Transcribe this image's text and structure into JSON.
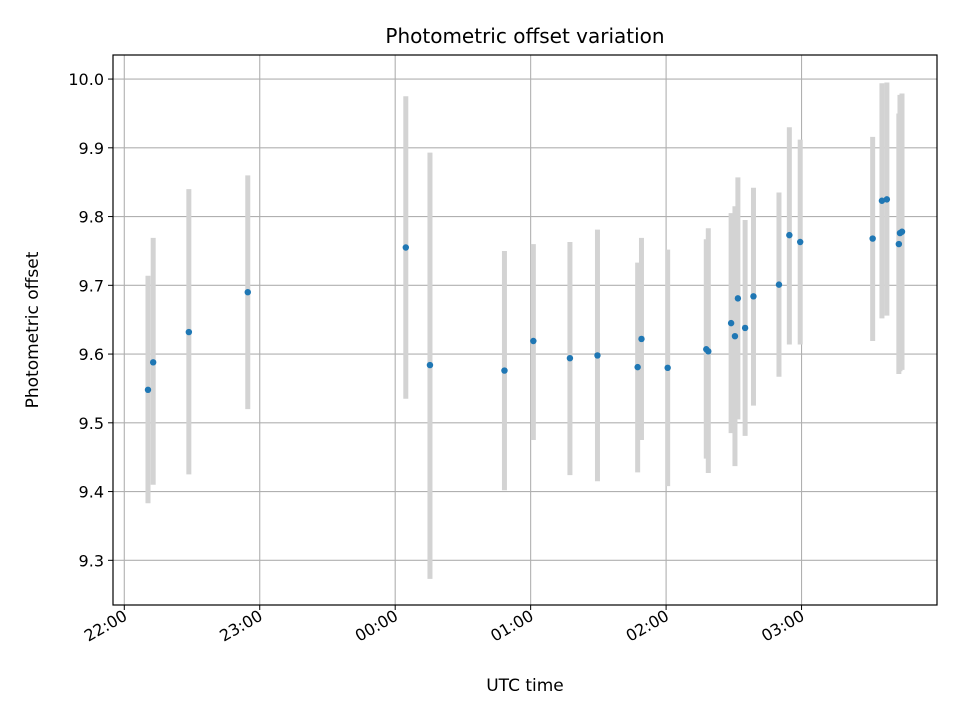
{
  "chart_data": {
    "type": "scatter",
    "title": "Photometric offset variation",
    "xlabel": "UTC time",
    "ylabel": "Photometric offset",
    "x_unit": "minutes after 22:00 UTC",
    "xlim": [
      -5,
      360
    ],
    "ylim": [
      9.235,
      10.035
    ],
    "xticks": [
      {
        "value": 0,
        "label": "22:00"
      },
      {
        "value": 60,
        "label": "23:00"
      },
      {
        "value": 120,
        "label": "00:00"
      },
      {
        "value": 180,
        "label": "01:00"
      },
      {
        "value": 240,
        "label": "02:00"
      },
      {
        "value": 300,
        "label": "03:00"
      }
    ],
    "yticks": [
      9.3,
      9.4,
      9.5,
      9.6,
      9.7,
      9.8,
      9.9,
      10.0
    ],
    "grid": true,
    "marker_color": "#1f77b4",
    "errorbar_color": "#d3d3d3",
    "points": [
      {
        "x": 10.5,
        "y": 9.548,
        "lo": 9.383,
        "hi": 9.714
      },
      {
        "x": 12.8,
        "y": 9.588,
        "lo": 9.41,
        "hi": 9.769
      },
      {
        "x": 28.6,
        "y": 9.632,
        "lo": 9.425,
        "hi": 9.84
      },
      {
        "x": 54.7,
        "y": 9.69,
        "lo": 9.52,
        "hi": 9.86
      },
      {
        "x": 124.7,
        "y": 9.755,
        "lo": 9.535,
        "hi": 9.975
      },
      {
        "x": 135.4,
        "y": 9.584,
        "lo": 9.273,
        "hi": 9.893
      },
      {
        "x": 168.4,
        "y": 9.576,
        "lo": 9.402,
        "hi": 9.75
      },
      {
        "x": 181.2,
        "y": 9.619,
        "lo": 9.475,
        "hi": 9.76
      },
      {
        "x": 197.4,
        "y": 9.594,
        "lo": 9.424,
        "hi": 9.763
      },
      {
        "x": 209.6,
        "y": 9.598,
        "lo": 9.415,
        "hi": 9.781
      },
      {
        "x": 227.4,
        "y": 9.581,
        "lo": 9.428,
        "hi": 9.733
      },
      {
        "x": 229.1,
        "y": 9.622,
        "lo": 9.475,
        "hi": 9.769
      },
      {
        "x": 240.7,
        "y": 9.58,
        "lo": 9.408,
        "hi": 9.752
      },
      {
        "x": 257.8,
        "y": 9.607,
        "lo": 9.448,
        "hi": 9.767
      },
      {
        "x": 258.7,
        "y": 9.604,
        "lo": 9.427,
        "hi": 9.783
      },
      {
        "x": 268.8,
        "y": 9.645,
        "lo": 9.485,
        "hi": 9.805
      },
      {
        "x": 270.5,
        "y": 9.626,
        "lo": 9.437,
        "hi": 9.815
      },
      {
        "x": 271.8,
        "y": 9.681,
        "lo": 9.505,
        "hi": 9.857
      },
      {
        "x": 275.0,
        "y": 9.638,
        "lo": 9.481,
        "hi": 9.795
      },
      {
        "x": 278.7,
        "y": 9.684,
        "lo": 9.525,
        "hi": 9.842
      },
      {
        "x": 290.0,
        "y": 9.701,
        "lo": 9.567,
        "hi": 9.835
      },
      {
        "x": 294.6,
        "y": 9.773,
        "lo": 9.614,
        "hi": 9.93
      },
      {
        "x": 299.4,
        "y": 9.763,
        "lo": 9.614,
        "hi": 9.912
      },
      {
        "x": 331.5,
        "y": 9.768,
        "lo": 9.619,
        "hi": 9.916
      },
      {
        "x": 335.6,
        "y": 9.823,
        "lo": 9.652,
        "hi": 9.994
      },
      {
        "x": 337.8,
        "y": 9.825,
        "lo": 9.656,
        "hi": 9.995
      },
      {
        "x": 343.1,
        "y": 9.76,
        "lo": 9.571,
        "hi": 9.95
      },
      {
        "x": 343.6,
        "y": 9.776,
        "lo": 9.575,
        "hi": 9.977
      },
      {
        "x": 344.5,
        "y": 9.778,
        "lo": 9.577,
        "hi": 9.979
      }
    ]
  }
}
